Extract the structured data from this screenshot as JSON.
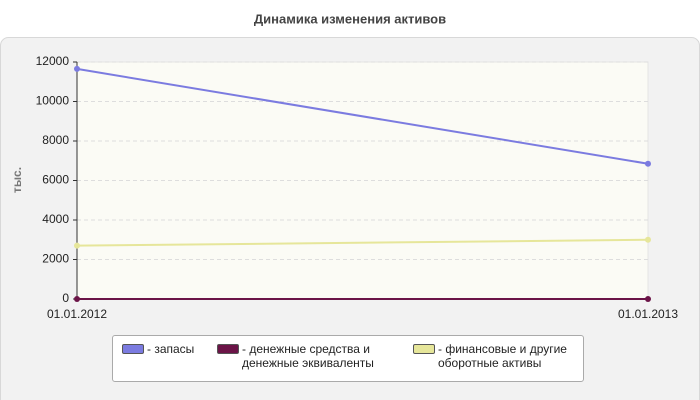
{
  "chart_data": {
    "type": "line",
    "title": "Динамика изменения активов",
    "y_label": "тыс.",
    "categories": [
      "01.01.2012",
      "01.01.2013"
    ],
    "series": [
      {
        "name": "- запасы",
        "color": "#7b7be0",
        "values": [
          11650,
          6850
        ]
      },
      {
        "name": "- денежные средства и денежные эквиваленты",
        "color": "#6b1447",
        "values": [
          0,
          0
        ]
      },
      {
        "name": "- финансовые и другие оборотные активы",
        "color": "#e6e69a",
        "values": [
          2700,
          3000
        ]
      }
    ],
    "ylim": [
      0,
      12000
    ],
    "yticks": [
      0,
      2000,
      4000,
      6000,
      8000,
      10000,
      12000
    ],
    "grid": true
  }
}
